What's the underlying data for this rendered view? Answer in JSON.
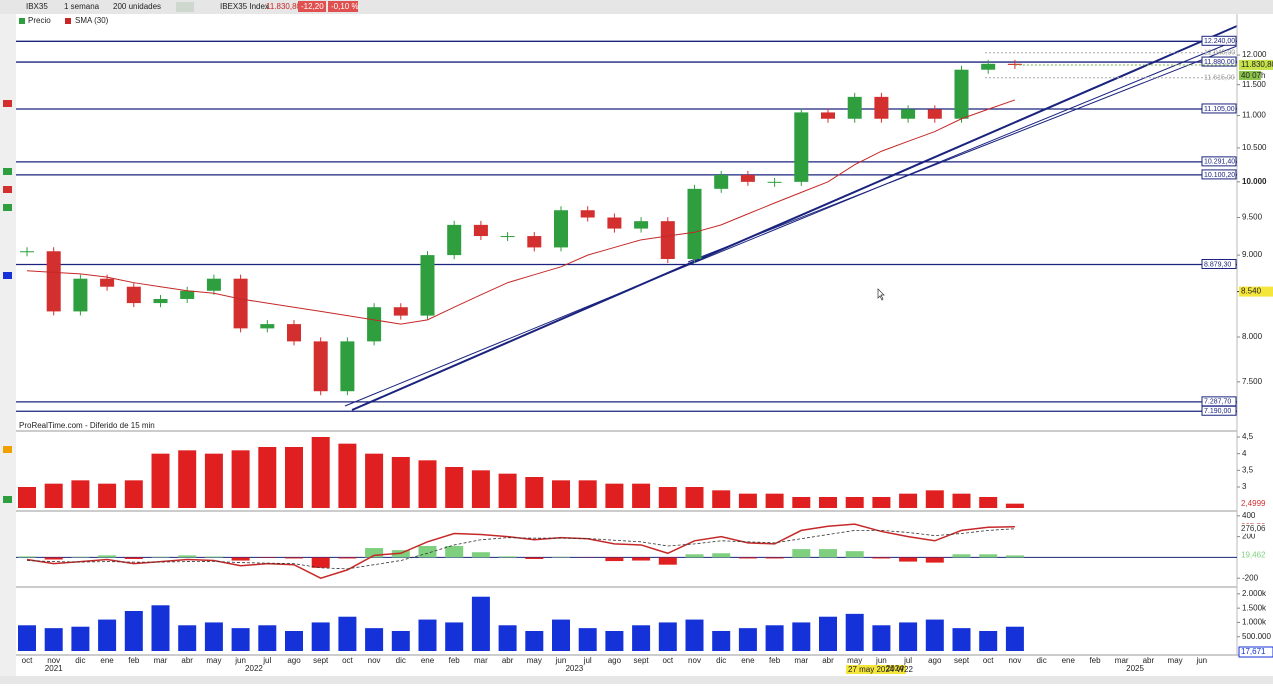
{
  "toolbar": {
    "symbol": "IBX35",
    "period": "1 semana",
    "units": "200 unidades",
    "instrument": "IBEX35 Index",
    "last": "11.830,80",
    "change": "-12,20",
    "change_pct": "-0,10 %"
  },
  "source": "ProRealTime.com - Diferido de 15 min",
  "cursor_label": "27 may 2024 W22",
  "x_axis": {
    "months": [
      "oct",
      "nov",
      "dic",
      "ene",
      "feb",
      "mar",
      "abr",
      "may",
      "jun",
      "jul",
      "ago",
      "sept",
      "oct",
      "nov",
      "dic",
      "ene",
      "feb",
      "mar",
      "abr",
      "may",
      "jun",
      "jul",
      "ago",
      "sept",
      "oct",
      "nov",
      "dic",
      "ene",
      "feb",
      "mar",
      "abr",
      "may",
      "jun",
      "jul",
      "ago",
      "sept",
      "oct",
      "nov",
      "dic",
      "ene",
      "feb",
      "mar",
      "abr",
      "may",
      "jun"
    ],
    "years": [
      "2021",
      "2022",
      "2023",
      "2024",
      "2025"
    ]
  },
  "chart_data": [
    {
      "type": "candlestick",
      "log": true,
      "ylim": [
        7100,
        12730
      ],
      "yticks": [
        {
          "value": 12000,
          "label": "12.000"
        },
        {
          "value": 11500,
          "label": "11.500"
        },
        {
          "value": 11000,
          "label": "11.000"
        },
        {
          "value": 10500,
          "label": "10.500"
        },
        {
          "value": 10000,
          "label": "10.000"
        },
        {
          "value": 9500,
          "label": "9.500"
        },
        {
          "value": 9000,
          "label": "9.000"
        },
        {
          "value": 8000,
          "label": "8.000"
        },
        {
          "value": 7500,
          "label": "7.500"
        }
      ],
      "series": [
        {
          "name": "Precio",
          "color": "#2e9e3e",
          "down_color": "#d32f2f",
          "values": [
            9050,
            8300,
            8700,
            8600,
            8400,
            8450,
            8550,
            8700,
            8100,
            8150,
            7950,
            7400,
            7950,
            8350,
            8250,
            9000,
            9400,
            9250,
            9250,
            9100,
            9600,
            9500,
            9350,
            9450,
            8950,
            9900,
            10100,
            10000,
            10000,
            11050,
            10950,
            11300,
            10950,
            11100,
            10950,
            11750,
            11850,
            11830.8
          ],
          "last_label": "11.830,80"
        },
        {
          "name": "SMA (30)",
          "color": "#c62828",
          "values": [
            8800,
            8780,
            8760,
            8720,
            8650,
            8600,
            8550,
            8520,
            8450,
            8400,
            8350,
            8300,
            8250,
            8200,
            8150,
            8200,
            8350,
            8500,
            8650,
            8750,
            8850,
            9000,
            9100,
            9200,
            9250,
            9300,
            9400,
            9550,
            9700,
            9850,
            10000,
            10250,
            10450,
            10600,
            10750,
            10950,
            11100,
            11250
          ]
        }
      ],
      "levels": [
        {
          "value": 12240,
          "label": "12.240,00"
        },
        {
          "value": 11880,
          "label": "11.880,00"
        },
        {
          "value": 11105,
          "label": "11.105,00"
        },
        {
          "value": 10291.4,
          "label": "10.291,40"
        },
        {
          "value": 10100.2,
          "label": "10.100,20"
        },
        {
          "value": 8879.3,
          "label": "8.879,30"
        },
        {
          "value": 7287.7,
          "label": "7.287,70"
        },
        {
          "value": 7190,
          "label": "7.190,00"
        }
      ],
      "price_labels": [
        {
          "value": 12040,
          "label": "12.040,00"
        },
        {
          "value": 11615,
          "label": "11.615,00"
        }
      ],
      "cursor": {
        "value": 8540,
        "label": "8.540"
      },
      "countdown": "40 07h"
    },
    {
      "type": "bar",
      "ylim": [
        2.37,
        4.65
      ],
      "yticks": [
        {
          "value": 4.5,
          "label": "4,5"
        },
        4,
        {
          "value": 3.5,
          "label": "3,5"
        },
        3
      ],
      "series": [
        {
          "color": "#e02020",
          "values": [
            3.0,
            3.1,
            3.2,
            3.1,
            3.2,
            4.0,
            4.1,
            4.0,
            4.1,
            4.2,
            4.2,
            4.5,
            4.3,
            4.0,
            3.9,
            3.8,
            3.6,
            3.5,
            3.4,
            3.3,
            3.2,
            3.2,
            3.1,
            3.1,
            3.0,
            3.0,
            2.9,
            2.8,
            2.8,
            2.7,
            2.7,
            2.7,
            2.7,
            2.8,
            2.9,
            2.8,
            2.7,
            2.4999
          ],
          "last_label": "2,4999"
        }
      ]
    },
    {
      "type": "macd",
      "ylim": [
        -275,
        437
      ],
      "yticks": [
        400,
        200,
        -200
      ],
      "series": [
        {
          "color": "#c62828",
          "values": [
            -20,
            -60,
            -40,
            -20,
            -60,
            -40,
            -20,
            -30,
            -80,
            -60,
            -70,
            -200,
            -120,
            20,
            40,
            150,
            230,
            220,
            200,
            170,
            190,
            180,
            130,
            120,
            40,
            160,
            200,
            140,
            130,
            260,
            300,
            320,
            250,
            200,
            160,
            260,
            290,
            295.52
          ],
          "last_label": "295,52"
        },
        {
          "color": "#333333",
          "values": [
            -30,
            -40,
            -45,
            -40,
            -45,
            -45,
            -40,
            -38,
            -50,
            -55,
            -60,
            -100,
            -110,
            -70,
            -30,
            40,
            120,
            170,
            190,
            185,
            185,
            182,
            165,
            150,
            110,
            130,
            160,
            150,
            140,
            180,
            220,
            260,
            260,
            240,
            210,
            230,
            260,
            276.06
          ],
          "last_label": "276,06"
        },
        {
          "color": "#7ed07e",
          "down_color": "#e02020",
          "values": [
            10,
            -20,
            5,
            20,
            -15,
            5,
            20,
            8,
            -30,
            -5,
            -10,
            -100,
            -10,
            90,
            70,
            110,
            110,
            50,
            10,
            -15,
            5,
            -2,
            -35,
            -30,
            -70,
            30,
            40,
            -10,
            -10,
            80,
            80,
            60,
            -10,
            -40,
            -50,
            30,
            30,
            19.462
          ],
          "last_label": "19,462"
        }
      ]
    },
    {
      "type": "bar",
      "ylim": [
        0,
        2100000
      ],
      "yticks": [
        {
          "value": 2000000,
          "label": "2.000k"
        },
        {
          "value": 1500000,
          "label": "1.500k"
        },
        {
          "value": 1000000,
          "label": "1.000k"
        },
        {
          "value": 500000,
          "label": "500.000"
        }
      ],
      "series": [
        {
          "color": "#1432d8",
          "values": [
            900000,
            800000,
            850000,
            1100000,
            1400000,
            1600000,
            900000,
            1000000,
            800000,
            900000,
            700000,
            1000000,
            1200000,
            800000,
            700000,
            1100000,
            1000000,
            1900000,
            900000,
            700000,
            1100000,
            800000,
            700000,
            900000,
            1000000,
            1100000,
            700000,
            800000,
            900000,
            1000000,
            1200000,
            1300000,
            900000,
            1000000,
            1100000,
            800000,
            700000,
            850000
          ]
        }
      ],
      "readout": "17,671"
    }
  ]
}
